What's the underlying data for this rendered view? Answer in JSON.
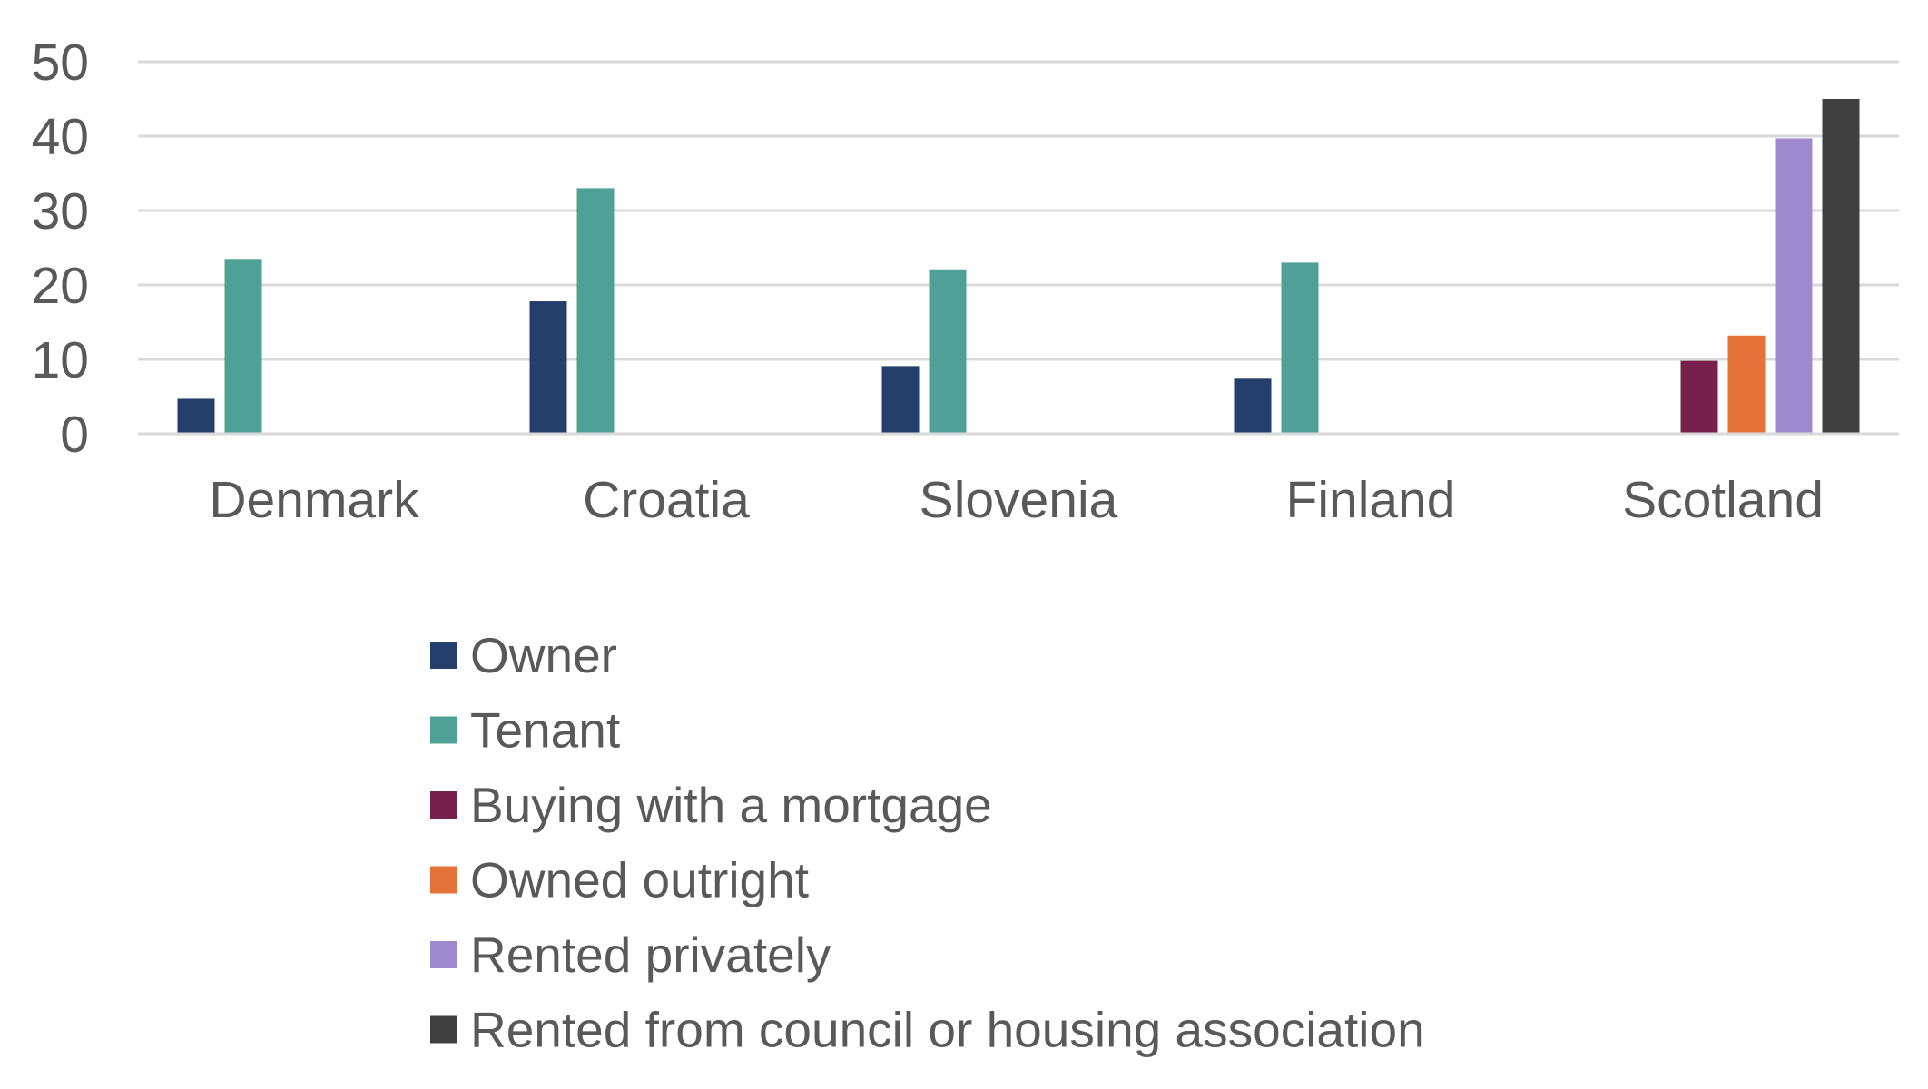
{
  "chart_data": {
    "type": "bar",
    "categories": [
      "Denmark",
      "Croatia",
      "Slovenia",
      "Finland",
      "Scotland"
    ],
    "series": [
      {
        "name": "Owner",
        "color": "#243f6b",
        "values": [
          4.7,
          17.8,
          9.1,
          7.4,
          null
        ]
      },
      {
        "name": "Tenant",
        "color": "#4fa197",
        "values": [
          23.5,
          33.0,
          22.1,
          23.0,
          null
        ]
      },
      {
        "name": "Buying with a mortgage",
        "color": "#76204b",
        "values": [
          null,
          null,
          null,
          null,
          9.8
        ]
      },
      {
        "name": "Owned outright",
        "color": "#e4733a",
        "values": [
          null,
          null,
          null,
          null,
          13.2
        ]
      },
      {
        "name": "Rented privately",
        "color": "#9e8bcf",
        "values": [
          null,
          null,
          null,
          null,
          39.7
        ]
      },
      {
        "name": "Rented from council or housing association",
        "color": "#404040",
        "values": [
          null,
          null,
          null,
          null,
          45.0
        ]
      }
    ],
    "ylim": [
      0,
      50
    ],
    "yticks": [
      0,
      10,
      20,
      30,
      40,
      50
    ],
    "title": "",
    "xlabel": "",
    "ylabel": "",
    "grid": true,
    "legend_position": "bottom"
  }
}
